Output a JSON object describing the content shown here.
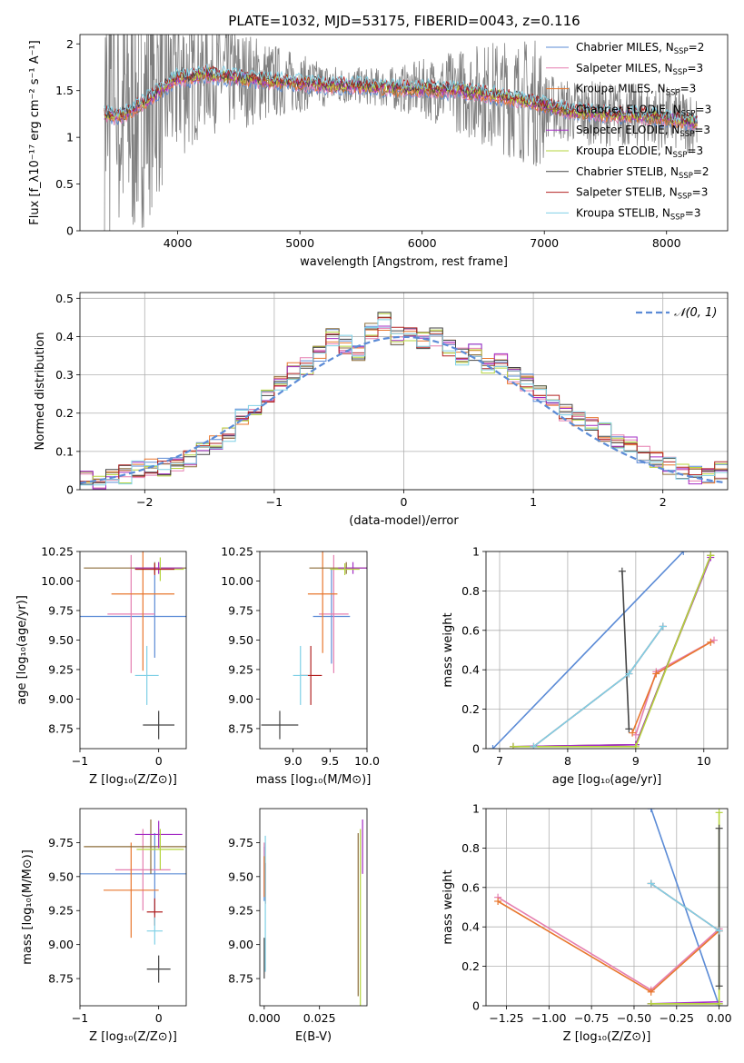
{
  "title": "PLATE=1032, MJD=53175, FIBERID=0043, z=0.116",
  "colors": {
    "Chabrier MILES": "#5b8bd6",
    "Salpeter MILES": "#e57fb0",
    "Kroupa MILES": "#e8772e",
    "Chabrier ELODIE": "#8c6d3a",
    "Salpeter ELODIE": "#a32cc4",
    "Kroupa ELODIE": "#b5d43d",
    "Chabrier STELIB": "#444444",
    "Salpeter STELIB": "#b22222",
    "Kroupa STELIB": "#7fd0e6",
    "data": "#7f7f7f"
  },
  "chart_data": [
    {
      "id": "spectrum",
      "type": "line",
      "xlabel": "wavelength [Angstrom, rest frame]",
      "ylabel": "Flux [f_λ10⁻¹⁷ erg cm⁻² s⁻¹ A⁻¹]",
      "xlim": [
        3200,
        8500
      ],
      "ylim": [
        0,
        2.1
      ],
      "xticks": [
        4000,
        5000,
        6000,
        7000,
        8000
      ],
      "yticks": [
        0.0,
        0.5,
        1.0,
        1.5,
        2.0
      ],
      "legend_position": "right",
      "legend": [
        {
          "label": "Chabrier MILES, N",
          "sub": "SSP",
          "tail": "=2"
        },
        {
          "label": "Salpeter MILES, N",
          "sub": "SSP",
          "tail": "=3"
        },
        {
          "label": "Kroupa MILES, N",
          "sub": "SSP",
          "tail": "=3"
        },
        {
          "label": "Chabrier ELODIE, N",
          "sub": "SSP",
          "tail": "=3"
        },
        {
          "label": "Salpeter ELODIE, N",
          "sub": "SSP",
          "tail": "=3"
        },
        {
          "label": "Kroupa ELODIE, N",
          "sub": "SSP",
          "tail": "=3"
        },
        {
          "label": "Chabrier STELIB, N",
          "sub": "SSP",
          "tail": "=2"
        },
        {
          "label": "Salpeter STELIB, N",
          "sub": "SSP",
          "tail": "=3"
        },
        {
          "label": "Kroupa STELIB, N",
          "sub": "SSP",
          "tail": "=3"
        }
      ],
      "model_continuum": {
        "x": [
          3400,
          3500,
          3600,
          3700,
          3800,
          3900,
          4000,
          4100,
          4200,
          4400,
          4600,
          4800,
          5000,
          5200,
          5500,
          5800,
          6000,
          6300,
          6600,
          6900,
          7200,
          7500,
          7800,
          8000,
          8200
        ],
        "y": [
          1.25,
          1.22,
          1.27,
          1.35,
          1.45,
          1.55,
          1.65,
          1.63,
          1.68,
          1.65,
          1.62,
          1.6,
          1.58,
          1.56,
          1.55,
          1.52,
          1.52,
          1.5,
          1.45,
          1.38,
          1.28,
          1.25,
          1.23,
          1.2,
          1.17
        ]
      }
    },
    {
      "id": "residuals",
      "type": "histogram",
      "xlabel": "(data-model)/error",
      "ylabel": "Normed distribution",
      "xlim": [
        -2.5,
        2.5
      ],
      "ylim": [
        0,
        0.515
      ],
      "xticks": [
        -2,
        -1,
        0,
        1,
        2
      ],
      "yticks": [
        0.0,
        0.1,
        0.2,
        0.3,
        0.4,
        0.5
      ],
      "grid": true,
      "legend_position": "top-right",
      "normal_label": "𝒩(0, 1)",
      "bin_edges": [
        -2.5,
        -2.4,
        -2.3,
        -2.2,
        -2.1,
        -2.0,
        -1.9,
        -1.8,
        -1.7,
        -1.6,
        -1.5,
        -1.4,
        -1.3,
        -1.2,
        -1.1,
        -1.0,
        -0.9,
        -0.8,
        -0.7,
        -0.6,
        -0.5,
        -0.4,
        -0.3,
        -0.2,
        -0.1,
        0.0,
        0.1,
        0.2,
        0.3,
        0.4,
        0.5,
        0.6,
        0.7,
        0.8,
        0.9,
        1.0,
        1.1,
        1.2,
        1.3,
        1.4,
        1.5,
        1.6,
        1.7,
        1.8,
        1.9,
        2.0,
        2.1,
        2.2,
        2.3,
        2.4,
        2.5
      ],
      "counts": [
        0.03,
        0.02,
        0.03,
        0.04,
        0.05,
        0.06,
        0.06,
        0.07,
        0.08,
        0.1,
        0.12,
        0.15,
        0.19,
        0.21,
        0.24,
        0.28,
        0.31,
        0.32,
        0.36,
        0.4,
        0.38,
        0.36,
        0.41,
        0.44,
        0.4,
        0.41,
        0.39,
        0.4,
        0.37,
        0.35,
        0.36,
        0.32,
        0.33,
        0.3,
        0.28,
        0.25,
        0.23,
        0.2,
        0.19,
        0.17,
        0.15,
        0.13,
        0.12,
        0.09,
        0.08,
        0.06,
        0.05,
        0.04,
        0.04,
        0.05
      ]
    },
    {
      "id": "age_vs_Z",
      "type": "scatter",
      "xlabel": "Z [log₁₀(Z/Z⊙)]",
      "ylabel": "age  [log₁₀(age/yr)]",
      "xlim": [
        -1.0,
        0.35
      ],
      "ylim": [
        8.58,
        10.25
      ],
      "xticks": [
        -1,
        0
      ],
      "yticks": [
        8.75,
        9.0,
        9.25,
        9.5,
        9.75,
        10.0,
        10.25
      ],
      "ytick_labels": [
        "8.75",
        "9.00",
        "9.25",
        "9.50",
        "9.75",
        "10.00",
        "10.25"
      ],
      "points": [
        {
          "model": "Chabrier MILES",
          "x": -0.05,
          "y": 9.7,
          "xerr": 0.97,
          "yerr": 0.35
        },
        {
          "model": "Salpeter MILES",
          "x": -0.35,
          "y": 9.72,
          "xerr": 0.3,
          "yerr": 0.5
        },
        {
          "model": "Kroupa MILES",
          "x": -0.2,
          "y": 9.89,
          "xerr": 0.4,
          "yerr": 0.65
        },
        {
          "model": "Chabrier ELODIE",
          "x": -0.05,
          "y": 10.11,
          "xerr": 0.9,
          "yerr": 0.05
        },
        {
          "model": "Salpeter ELODIE",
          "x": 0.0,
          "y": 10.11,
          "xerr": 0.3,
          "yerr": 0.05
        },
        {
          "model": "Kroupa ELODIE",
          "x": 0.02,
          "y": 10.1,
          "xerr": 0.3,
          "yerr": 0.1
        },
        {
          "model": "Chabrier STELIB",
          "x": 0.0,
          "y": 8.78,
          "xerr": 0.2,
          "yerr": 0.12
        },
        {
          "model": "Salpeter STELIB",
          "x": -0.05,
          "y": 10.1,
          "xerr": 0.25,
          "yerr": 0.05
        },
        {
          "model": "Kroupa STELIB",
          "x": -0.15,
          "y": 9.2,
          "xerr": 0.15,
          "yerr": 0.25
        }
      ]
    },
    {
      "id": "age_vs_mass",
      "type": "scatter",
      "xlabel": "mass [log₁₀(M/M⊙)]",
      "ylabel": "",
      "xlim": [
        8.55,
        10.0
      ],
      "ylim": [
        8.58,
        10.25
      ],
      "xticks": [
        9.0,
        9.5,
        10.0
      ],
      "xtick_labels": [
        "9.0",
        "9.5",
        "10.0"
      ],
      "yticks": [
        8.75,
        9.0,
        9.25,
        9.5,
        9.75,
        10.0,
        10.25
      ],
      "ytick_labels": [
        "8.75",
        "9.00",
        "9.25",
        "9.50",
        "9.75",
        "10.00",
        "10.25"
      ],
      "points": [
        {
          "model": "Chabrier MILES",
          "x": 9.52,
          "y": 9.7,
          "xerr": 0.25,
          "yerr": 0.4
        },
        {
          "model": "Salpeter MILES",
          "x": 9.55,
          "y": 9.72,
          "xerr": 0.2,
          "yerr": 0.5
        },
        {
          "model": "Kroupa MILES",
          "x": 9.4,
          "y": 9.89,
          "xerr": 0.2,
          "yerr": 0.5
        },
        {
          "model": "Chabrier ELODIE",
          "x": 9.72,
          "y": 10.11,
          "xerr": 0.5,
          "yerr": 0.05
        },
        {
          "model": "Salpeter ELODIE",
          "x": 9.81,
          "y": 10.11,
          "xerr": 0.2,
          "yerr": 0.05
        },
        {
          "model": "Kroupa ELODIE",
          "x": 9.7,
          "y": 10.1,
          "xerr": 0.2,
          "yerr": 0.05
        },
        {
          "model": "Chabrier STELIB",
          "x": 8.82,
          "y": 8.78,
          "xerr": 0.25,
          "yerr": 0.12
        },
        {
          "model": "Salpeter STELIB",
          "x": 9.24,
          "y": 9.2,
          "xerr": 0.15,
          "yerr": 0.25
        },
        {
          "model": "Kroupa STELIB",
          "x": 9.1,
          "y": 9.2,
          "xerr": 0.1,
          "yerr": 0.25
        }
      ]
    },
    {
      "id": "weight_vs_age",
      "type": "line",
      "xlabel": "age  [log₁₀(age/yr)]",
      "ylabel": "mass weight",
      "xlim": [
        6.8,
        10.35
      ],
      "ylim": [
        0,
        1.0
      ],
      "xticks": [
        7,
        8,
        9,
        10
      ],
      "yticks": [
        0.0,
        0.2,
        0.4,
        0.6,
        0.8,
        1.0
      ],
      "grid": true,
      "series": [
        {
          "model": "Chabrier MILES",
          "x": [
            6.9,
            9.7
          ],
          "y": [
            0.0,
            1.0
          ]
        },
        {
          "model": "Salpeter MILES",
          "x": [
            9.0,
            9.3,
            10.15
          ],
          "y": [
            0.07,
            0.39,
            0.55
          ]
        },
        {
          "model": "Kroupa MILES",
          "x": [
            8.95,
            9.3,
            10.1
          ],
          "y": [
            0.08,
            0.38,
            0.54
          ]
        },
        {
          "model": "Chabrier ELODIE",
          "x": [
            7.2,
            9.0,
            10.1
          ],
          "y": [
            0.01,
            0.02,
            0.98
          ]
        },
        {
          "model": "Salpeter ELODIE",
          "x": [
            7.2,
            9.0,
            10.1
          ],
          "y": [
            0.01,
            0.02,
            0.97
          ]
        },
        {
          "model": "Kroupa ELODIE",
          "x": [
            7.2,
            9.0,
            10.1
          ],
          "y": [
            0.01,
            0.01,
            0.98
          ]
        },
        {
          "model": "Chabrier STELIB",
          "x": [
            8.8,
            8.9
          ],
          "y": [
            0.9,
            0.1
          ]
        },
        {
          "model": "Salpeter STELIB",
          "x": [
            7.5,
            8.9,
            9.4
          ],
          "y": [
            0.01,
            0.38,
            0.62
          ]
        },
        {
          "model": "Kroupa STELIB",
          "x": [
            7.5,
            8.9,
            9.4
          ],
          "y": [
            0.01,
            0.38,
            0.62
          ]
        }
      ]
    },
    {
      "id": "mass_vs_Z",
      "type": "scatter",
      "xlabel": "Z [log₁₀(Z/Z⊙)]",
      "ylabel": "mass [log₁₀(M/M⊙)]",
      "xlim": [
        -1.0,
        0.35
      ],
      "ylim": [
        8.55,
        10.0
      ],
      "xticks": [
        -1,
        0
      ],
      "yticks": [
        8.75,
        9.0,
        9.25,
        9.5,
        9.75
      ],
      "ytick_labels": [
        "8.75",
        "9.00",
        "9.25",
        "9.50",
        "9.75"
      ],
      "points": [
        {
          "model": "Chabrier MILES",
          "x": -0.05,
          "y": 9.52,
          "xerr": 0.95,
          "yerr": 0.3
        },
        {
          "model": "Salpeter MILES",
          "x": -0.2,
          "y": 9.55,
          "xerr": 0.35,
          "yerr": 0.3
        },
        {
          "model": "Kroupa MILES",
          "x": -0.35,
          "y": 9.4,
          "xerr": 0.35,
          "yerr": 0.35
        },
        {
          "model": "Chabrier ELODIE",
          "x": -0.1,
          "y": 9.72,
          "xerr": 0.85,
          "yerr": 0.2
        },
        {
          "model": "Salpeter ELODIE",
          "x": 0.0,
          "y": 9.81,
          "xerr": 0.3,
          "yerr": 0.1
        },
        {
          "model": "Kroupa ELODIE",
          "x": 0.02,
          "y": 9.7,
          "xerr": 0.3,
          "yerr": 0.15
        },
        {
          "model": "Chabrier STELIB",
          "x": 0.0,
          "y": 8.82,
          "xerr": 0.15,
          "yerr": 0.1
        },
        {
          "model": "Salpeter STELIB",
          "x": -0.05,
          "y": 9.24,
          "xerr": 0.1,
          "yerr": 0.1
        },
        {
          "model": "Kroupa STELIB",
          "x": -0.05,
          "y": 9.1,
          "xerr": 0.1,
          "yerr": 0.1
        }
      ]
    },
    {
      "id": "mass_vs_EBV",
      "type": "scatter",
      "xlabel": "E(B-V)",
      "ylabel": "",
      "xlim": [
        -0.002,
        0.0465
      ],
      "ylim": [
        8.55,
        10.0
      ],
      "xticks": [
        0.0,
        0.025
      ],
      "xtick_labels": [
        "0.000",
        "0.025"
      ],
      "yticks": [
        8.75,
        9.0,
        9.25,
        9.5,
        9.75
      ],
      "ytick_labels": [
        "8.75",
        "9.00",
        "9.25",
        "9.50",
        "9.75"
      ],
      "points": [
        {
          "model": "Chabrier MILES",
          "x": 0.0,
          "y": 9.52,
          "xerr": 0.0,
          "yerr": 0.2
        },
        {
          "model": "Salpeter MILES",
          "x": 0.0,
          "y": 9.55,
          "xerr": 0.0,
          "yerr": 0.2
        },
        {
          "model": "Kroupa MILES",
          "x": 0.0,
          "y": 9.5,
          "xerr": 0.0,
          "yerr": 0.15
        },
        {
          "model": "Chabrier ELODIE",
          "x": 0.0425,
          "y": 9.22,
          "xerr": 0.0,
          "yerr": 0.6
        },
        {
          "model": "Salpeter ELODIE",
          "x": 0.0445,
          "y": 9.72,
          "xerr": 0.0,
          "yerr": 0.2
        },
        {
          "model": "Kroupa ELODIE",
          "x": 0.0435,
          "y": 9.15,
          "xerr": 0.0,
          "yerr": 0.7
        },
        {
          "model": "Chabrier STELIB",
          "x": 0.0,
          "y": 8.9,
          "xerr": 0.0,
          "yerr": 0.15
        },
        {
          "model": "Salpeter STELIB",
          "x": 0.0005,
          "y": 9.45,
          "xerr": 0.0,
          "yerr": 0.15
        },
        {
          "model": "Kroupa STELIB",
          "x": 0.0005,
          "y": 9.3,
          "xerr": 0.0,
          "yerr": 0.5
        }
      ]
    },
    {
      "id": "weight_vs_Z",
      "type": "line",
      "xlabel": "Z [log₁₀(Z/Z⊙)]",
      "ylabel": "mass weight",
      "xlim": [
        -1.37,
        0.05
      ],
      "ylim": [
        0,
        1.0
      ],
      "xticks": [
        -1.25,
        -1.0,
        -0.75,
        -0.5,
        -0.25,
        0.0
      ],
      "xtick_labels": [
        "−1.25",
        "−1.00",
        "−0.75",
        "−0.50",
        "−0.25",
        "0.00"
      ],
      "yticks": [
        0.0,
        0.2,
        0.4,
        0.6,
        0.8,
        1.0
      ],
      "grid": true,
      "series": [
        {
          "model": "Chabrier MILES",
          "x": [
            -0.4,
            0.0
          ],
          "y": [
            1.0,
            0.0
          ]
        },
        {
          "model": "Salpeter MILES",
          "x": [
            -1.3,
            -0.4,
            0.0
          ],
          "y": [
            0.55,
            0.08,
            0.39
          ]
        },
        {
          "model": "Kroupa MILES",
          "x": [
            -1.3,
            -0.4,
            0.0
          ],
          "y": [
            0.53,
            0.07,
            0.38
          ]
        },
        {
          "model": "Chabrier ELODIE",
          "x": [
            -0.4,
            0.0
          ],
          "y": [
            0.01,
            0.01
          ]
        },
        {
          "model": "Salpeter ELODIE",
          "x": [
            -0.4,
            0.0
          ],
          "y": [
            0.01,
            0.02
          ]
        },
        {
          "model": "Kroupa ELODIE",
          "x": [
            -0.4,
            0.0,
            0.0
          ],
          "y": [
            0.01,
            0.01,
            0.98
          ]
        },
        {
          "model": "Chabrier STELIB",
          "x": [
            0.0,
            0.0
          ],
          "y": [
            0.9,
            0.1
          ]
        },
        {
          "model": "Salpeter STELIB",
          "x": [
            -0.4,
            0.0
          ],
          "y": [
            0.62,
            0.38
          ]
        },
        {
          "model": "Kroupa STELIB",
          "x": [
            -0.4,
            0.0
          ],
          "y": [
            0.62,
            0.38
          ]
        }
      ]
    }
  ]
}
